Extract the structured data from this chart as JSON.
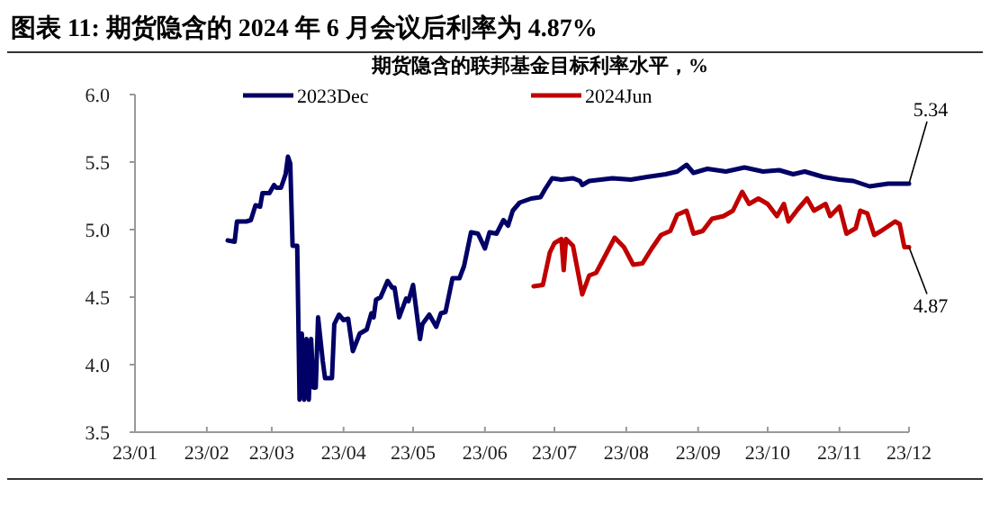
{
  "chart_data": {
    "type": "line",
    "title": "图表 11:  期货隐含的 2024 年 6 月会议后利率为 4.87%",
    "subtitle": "期货隐含的联邦基金目标利率水平，%",
    "xlim": [
      "2023-01-01",
      "2023-12-01"
    ],
    "xticks": [
      {
        "value": "2023-01-01",
        "label": "23/01"
      },
      {
        "value": "2023-02-01",
        "label": "23/02"
      },
      {
        "value": "2023-03-01",
        "label": "23/03"
      },
      {
        "value": "2023-04-01",
        "label": "23/04"
      },
      {
        "value": "2023-05-01",
        "label": "23/05"
      },
      {
        "value": "2023-06-01",
        "label": "23/06"
      },
      {
        "value": "2023-07-01",
        "label": "23/07"
      },
      {
        "value": "2023-08-01",
        "label": "23/08"
      },
      {
        "value": "2023-09-01",
        "label": "23/09"
      },
      {
        "value": "2023-10-01",
        "label": "23/10"
      },
      {
        "value": "2023-11-01",
        "label": "23/11"
      },
      {
        "value": "2023-12-01",
        "label": "23/12"
      }
    ],
    "ylim": [
      3.5,
      6.0
    ],
    "yticks": [
      3.5,
      {
        "value": 4,
        "label": "4.0"
      },
      4.5,
      {
        "value": 5,
        "label": "5.0"
      },
      5.5,
      {
        "value": 6,
        "label": "6.0"
      }
    ],
    "grid": false,
    "legend": "top",
    "line_style": "solid",
    "marker": "none",
    "series": [
      {
        "name": "2023Dec",
        "color": "#000066",
        "x": [
          "2023-02-10",
          "2023-02-13",
          "2023-02-14",
          "2023-02-18",
          "2023-02-20",
          "2023-02-22",
          "2023-02-24",
          "2023-02-25",
          "2023-02-28",
          "2023-03-02",
          "2023-03-03",
          "2023-03-05",
          "2023-03-07",
          "2023-03-08",
          "2023-03-09",
          "2023-03-10",
          "2023-03-12",
          "2023-03-13",
          "2023-03-14",
          "2023-03-15",
          "2023-03-16",
          "2023-03-17",
          "2023-03-18",
          "2023-03-19",
          "2023-03-20",
          "2023-03-21",
          "2023-03-23",
          "2023-03-24",
          "2023-03-27",
          "2023-03-28",
          "2023-03-30",
          "2023-04-01",
          "2023-04-03",
          "2023-04-05",
          "2023-04-08",
          "2023-04-11",
          "2023-04-13",
          "2023-04-14",
          "2023-04-15",
          "2023-04-17",
          "2023-04-20",
          "2023-04-22",
          "2023-04-23",
          "2023-04-25",
          "2023-04-28",
          "2023-04-29",
          "2023-05-01",
          "2023-05-04",
          "2023-05-05",
          "2023-05-08",
          "2023-05-11",
          "2023-05-13",
          "2023-05-15",
          "2023-05-18",
          "2023-05-21",
          "2023-05-23",
          "2023-05-26",
          "2023-05-29",
          "2023-06-01",
          "2023-06-03",
          "2023-06-06",
          "2023-06-09",
          "2023-06-11",
          "2023-06-13",
          "2023-06-16",
          "2023-06-21",
          "2023-06-25",
          "2023-06-27",
          "2023-06-30",
          "2023-07-04",
          "2023-07-09",
          "2023-07-12",
          "2023-07-13",
          "2023-07-16",
          "2023-07-21",
          "2023-07-26",
          "2023-08-03",
          "2023-08-10",
          "2023-08-18",
          "2023-08-23",
          "2023-08-27",
          "2023-08-30",
          "2023-09-05",
          "2023-09-13",
          "2023-09-21",
          "2023-09-29",
          "2023-10-06",
          "2023-10-12",
          "2023-10-17",
          "2023-10-25",
          "2023-11-01",
          "2023-11-07",
          "2023-11-14",
          "2023-11-22",
          "2023-12-01"
        ],
        "values": [
          4.92,
          4.91,
          5.06,
          5.06,
          5.07,
          5.18,
          5.17,
          5.27,
          5.27,
          5.33,
          5.31,
          5.31,
          5.41,
          5.54,
          5.49,
          4.88,
          4.88,
          3.74,
          4.23,
          3.74,
          4.19,
          3.74,
          4.19,
          3.83,
          3.83,
          4.35,
          4.03,
          3.9,
          3.9,
          4.3,
          4.37,
          4.33,
          4.34,
          4.1,
          4.23,
          4.26,
          4.38,
          4.35,
          4.48,
          4.5,
          4.62,
          4.57,
          4.57,
          4.35,
          4.49,
          4.47,
          4.59,
          4.19,
          4.3,
          4.37,
          4.28,
          4.38,
          4.39,
          4.64,
          4.64,
          4.73,
          4.98,
          4.97,
          4.86,
          4.98,
          4.97,
          5.07,
          5.03,
          5.14,
          5.2,
          5.23,
          5.24,
          5.3,
          5.38,
          5.37,
          5.38,
          5.36,
          5.33,
          5.36,
          5.37,
          5.38,
          5.37,
          5.39,
          5.41,
          5.43,
          5.48,
          5.42,
          5.45,
          5.43,
          5.46,
          5.43,
          5.44,
          5.41,
          5.43,
          5.39,
          5.37,
          5.36,
          5.32,
          5.34,
          5.34
        ]
      },
      {
        "name": "2024Jun",
        "color": "#c00000",
        "x": [
          "2023-06-22",
          "2023-06-26",
          "2023-06-29",
          "2023-07-01",
          "2023-07-04",
          "2023-07-05",
          "2023-07-06",
          "2023-07-09",
          "2023-07-13",
          "2023-07-16",
          "2023-07-19",
          "2023-07-23",
          "2023-07-27",
          "2023-07-31",
          "2023-08-04",
          "2023-08-08",
          "2023-08-12",
          "2023-08-16",
          "2023-08-20",
          "2023-08-23",
          "2023-08-27",
          "2023-08-30",
          "2023-09-03",
          "2023-09-07",
          "2023-09-12",
          "2023-09-16",
          "2023-09-20",
          "2023-09-23",
          "2023-09-27",
          "2023-10-01",
          "2023-10-05",
          "2023-10-08",
          "2023-10-10",
          "2023-10-14",
          "2023-10-18",
          "2023-10-21",
          "2023-10-26",
          "2023-10-28",
          "2023-11-01",
          "2023-11-04",
          "2023-11-08",
          "2023-11-10",
          "2023-11-13",
          "2023-11-16",
          "2023-11-19",
          "2023-11-25",
          "2023-11-27",
          "2023-11-29",
          "2023-12-01"
        ],
        "values": [
          4.58,
          4.59,
          4.83,
          4.9,
          4.93,
          4.7,
          4.93,
          4.88,
          4.52,
          4.66,
          4.68,
          4.81,
          4.94,
          4.87,
          4.74,
          4.75,
          4.86,
          4.96,
          4.99,
          5.11,
          5.14,
          4.97,
          4.99,
          5.08,
          5.1,
          5.14,
          5.28,
          5.19,
          5.23,
          5.19,
          5.1,
          5.19,
          5.06,
          5.15,
          5.23,
          5.14,
          5.19,
          5.1,
          5.17,
          4.97,
          5.01,
          5.14,
          5.12,
          4.96,
          4.99,
          5.06,
          5.04,
          4.87,
          4.87
        ]
      }
    ],
    "annotations": [
      {
        "text": "5.34",
        "x": "2023-12-01",
        "y": 5.34
      },
      {
        "text": "4.87",
        "x": "2023-12-01",
        "y": 4.87
      }
    ]
  }
}
